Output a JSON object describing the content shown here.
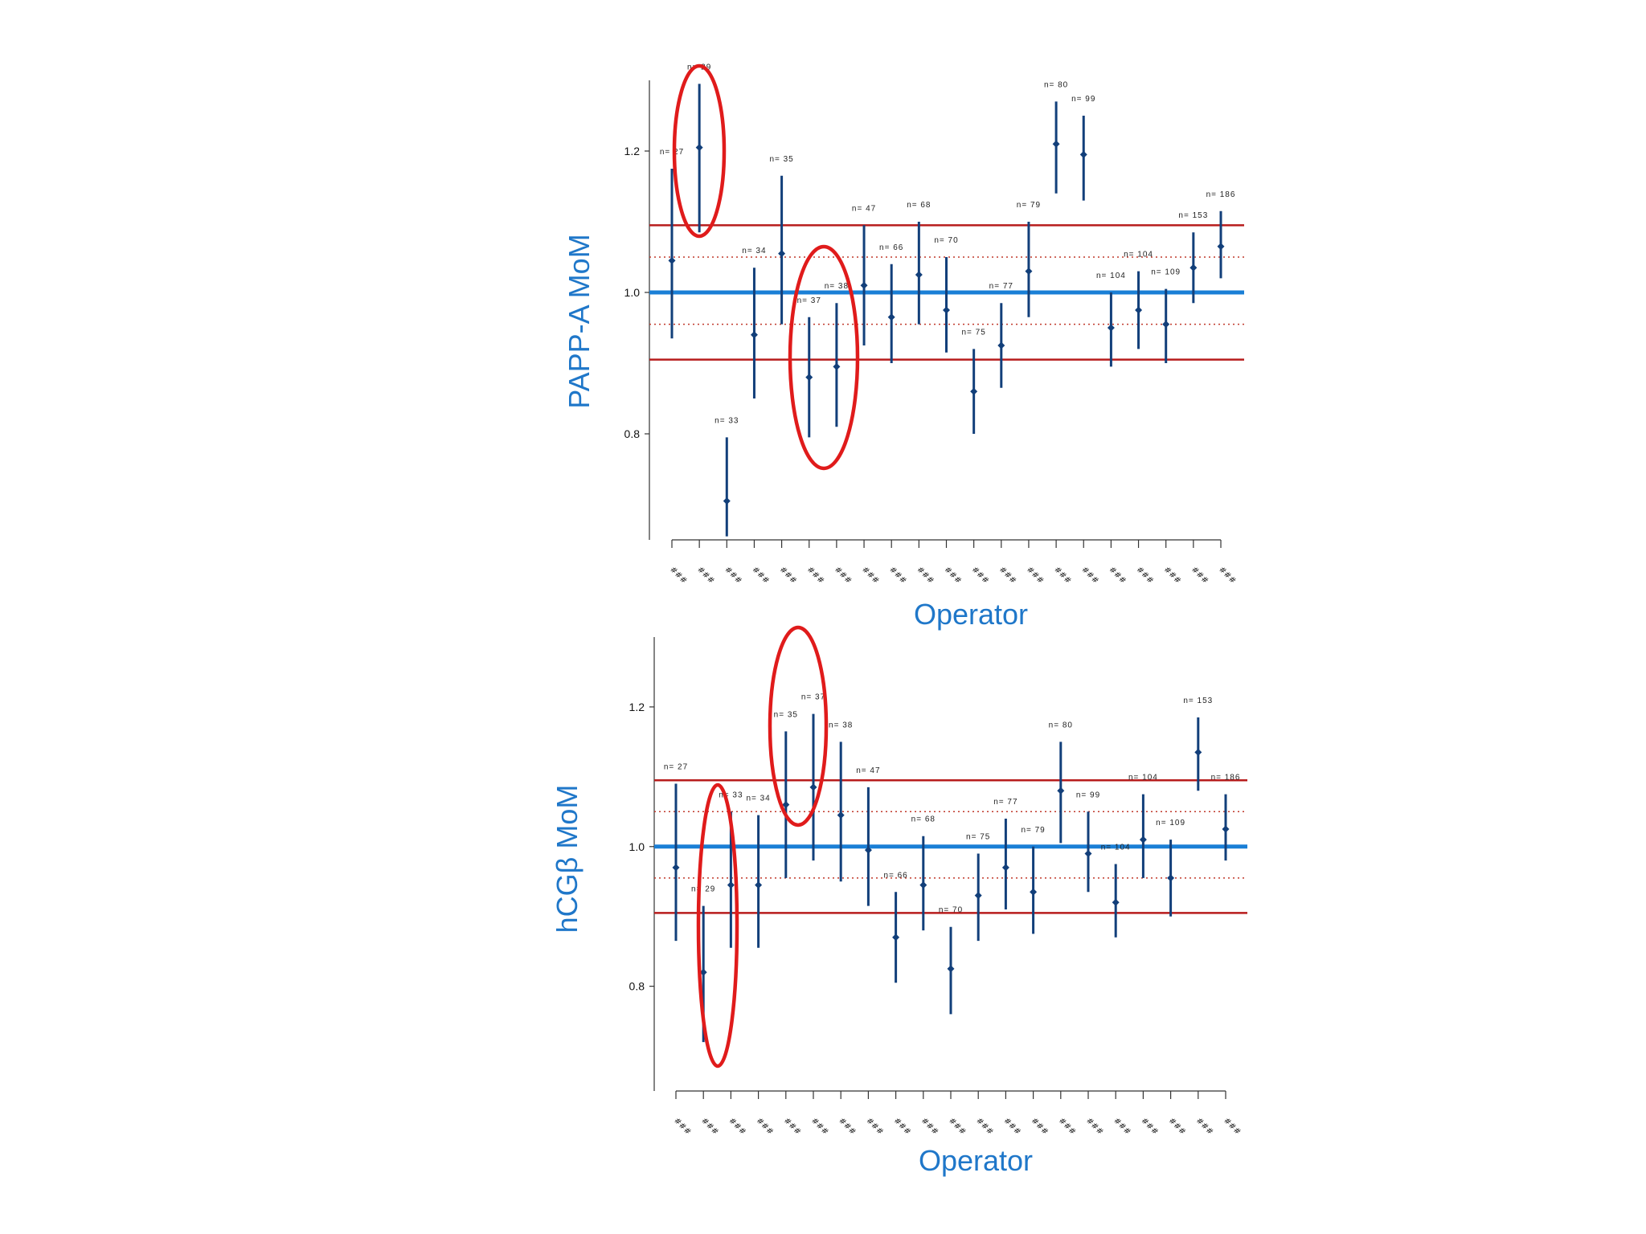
{
  "colors": {
    "point": "#123f7a",
    "reference_center": "#1a7fd6",
    "reference_limit": "#b71c1c",
    "reference_dotted": "#c0392b",
    "highlight": "#e01b1b",
    "axis_title": "#1f77c9",
    "axis": "#333333"
  },
  "chart_data": [
    {
      "type": "scatter",
      "style": "point-with-error-bars",
      "xlabel": "Operator",
      "ylabel": "PAPP-A MoM",
      "ylim": [
        0.65,
        1.3
      ],
      "yticks": [
        "0.8",
        "1.0",
        "1.2"
      ],
      "grid": false,
      "legend": "none",
      "categories": [
        "###",
        "###",
        "###",
        "###",
        "###",
        "###",
        "###",
        "###",
        "###",
        "###",
        "###",
        "###",
        "###",
        "###",
        "###",
        "###",
        "###",
        "###",
        "###",
        "###",
        "###"
      ],
      "reference_lines": {
        "center": 1.0,
        "solid_limits": [
          0.905,
          1.095
        ],
        "dotted_limits": [
          0.955,
          1.05
        ]
      },
      "points": [
        {
          "n": "n= 27",
          "y": 1.045,
          "low": 0.935,
          "high": 1.175
        },
        {
          "n": "n= 29",
          "y": 1.205,
          "low": 1.085,
          "high": 1.295
        },
        {
          "n": "n= 33",
          "y": 0.705,
          "low": 0.655,
          "high": 0.795
        },
        {
          "n": "n= 34",
          "y": 0.94,
          "low": 0.85,
          "high": 1.035
        },
        {
          "n": "n= 35",
          "y": 1.055,
          "low": 0.955,
          "high": 1.165
        },
        {
          "n": "n= 37",
          "y": 0.88,
          "low": 0.795,
          "high": 0.965
        },
        {
          "n": "n= 38",
          "y": 0.895,
          "low": 0.81,
          "high": 0.985
        },
        {
          "n": "n= 47",
          "y": 1.01,
          "low": 0.925,
          "high": 1.095
        },
        {
          "n": "n= 66",
          "y": 0.965,
          "low": 0.9,
          "high": 1.04
        },
        {
          "n": "n= 68",
          "y": 1.025,
          "low": 0.955,
          "high": 1.1
        },
        {
          "n": "n= 70",
          "y": 0.975,
          "low": 0.915,
          "high": 1.05
        },
        {
          "n": "n= 75",
          "y": 0.86,
          "low": 0.8,
          "high": 0.92
        },
        {
          "n": "n= 77",
          "y": 0.925,
          "low": 0.865,
          "high": 0.985
        },
        {
          "n": "n= 79",
          "y": 1.03,
          "low": 0.965,
          "high": 1.1
        },
        {
          "n": "n= 80",
          "y": 1.21,
          "low": 1.14,
          "high": 1.27
        },
        {
          "n": "n= 99",
          "y": 1.195,
          "low": 1.13,
          "high": 1.25
        },
        {
          "n": "n= 104",
          "y": 0.95,
          "low": 0.895,
          "high": 1.0
        },
        {
          "n": "n= 104",
          "y": 0.975,
          "low": 0.92,
          "high": 1.03
        },
        {
          "n": "n= 109",
          "y": 0.955,
          "low": 0.9,
          "high": 1.005
        },
        {
          "n": "n= 153",
          "y": 1.035,
          "low": 0.985,
          "high": 1.085
        },
        {
          "n": "n= 186",
          "y": 1.065,
          "low": 1.02,
          "high": 1.115
        }
      ],
      "highlighted_points": [
        1,
        5,
        6
      ]
    },
    {
      "type": "scatter",
      "style": "point-with-error-bars",
      "xlabel": "Operator",
      "ylabel": "hCGβ MoM",
      "ylim": [
        0.65,
        1.3
      ],
      "yticks": [
        "0.8",
        "1.0",
        "1.2"
      ],
      "grid": false,
      "legend": "none",
      "categories": [
        "###",
        "###",
        "###",
        "###",
        "###",
        "###",
        "###",
        "###",
        "###",
        "###",
        "###",
        "###",
        "###",
        "###",
        "###",
        "###",
        "###",
        "###",
        "###",
        "###",
        "###"
      ],
      "reference_lines": {
        "center": 1.0,
        "solid_limits": [
          0.905,
          1.095
        ],
        "dotted_limits": [
          0.955,
          1.05
        ]
      },
      "points": [
        {
          "n": "n= 27",
          "y": 0.97,
          "low": 0.865,
          "high": 1.09
        },
        {
          "n": "n= 29",
          "y": 0.82,
          "low": 0.72,
          "high": 0.915
        },
        {
          "n": "n= 33",
          "y": 0.945,
          "low": 0.855,
          "high": 1.05
        },
        {
          "n": "n= 34",
          "y": 0.945,
          "low": 0.855,
          "high": 1.045
        },
        {
          "n": "n= 35",
          "y": 1.06,
          "low": 0.955,
          "high": 1.165
        },
        {
          "n": "n= 37",
          "y": 1.085,
          "low": 0.98,
          "high": 1.19
        },
        {
          "n": "n= 38",
          "y": 1.045,
          "low": 0.95,
          "high": 1.15
        },
        {
          "n": "n= 47",
          "y": 0.995,
          "low": 0.915,
          "high": 1.085
        },
        {
          "n": "n= 66",
          "y": 0.87,
          "low": 0.805,
          "high": 0.935
        },
        {
          "n": "n= 68",
          "y": 0.945,
          "low": 0.88,
          "high": 1.015
        },
        {
          "n": "n= 70",
          "y": 0.825,
          "low": 0.76,
          "high": 0.885
        },
        {
          "n": "n= 75",
          "y": 0.93,
          "low": 0.865,
          "high": 0.99
        },
        {
          "n": "n= 77",
          "y": 0.97,
          "low": 0.91,
          "high": 1.04
        },
        {
          "n": "n= 79",
          "y": 0.935,
          "low": 0.875,
          "high": 1.0
        },
        {
          "n": "n= 80",
          "y": 1.08,
          "low": 1.005,
          "high": 1.15
        },
        {
          "n": "n= 99",
          "y": 0.99,
          "low": 0.935,
          "high": 1.05
        },
        {
          "n": "n= 104",
          "y": 0.92,
          "low": 0.87,
          "high": 0.975
        },
        {
          "n": "n= 104",
          "y": 1.01,
          "low": 0.955,
          "high": 1.075
        },
        {
          "n": "n= 109",
          "y": 0.955,
          "low": 0.9,
          "high": 1.01
        },
        {
          "n": "n= 153",
          "y": 1.135,
          "low": 1.08,
          "high": 1.185
        },
        {
          "n": "n= 186",
          "y": 1.025,
          "low": 0.98,
          "high": 1.075
        }
      ],
      "highlighted_points": [
        1,
        4,
        5
      ]
    }
  ]
}
